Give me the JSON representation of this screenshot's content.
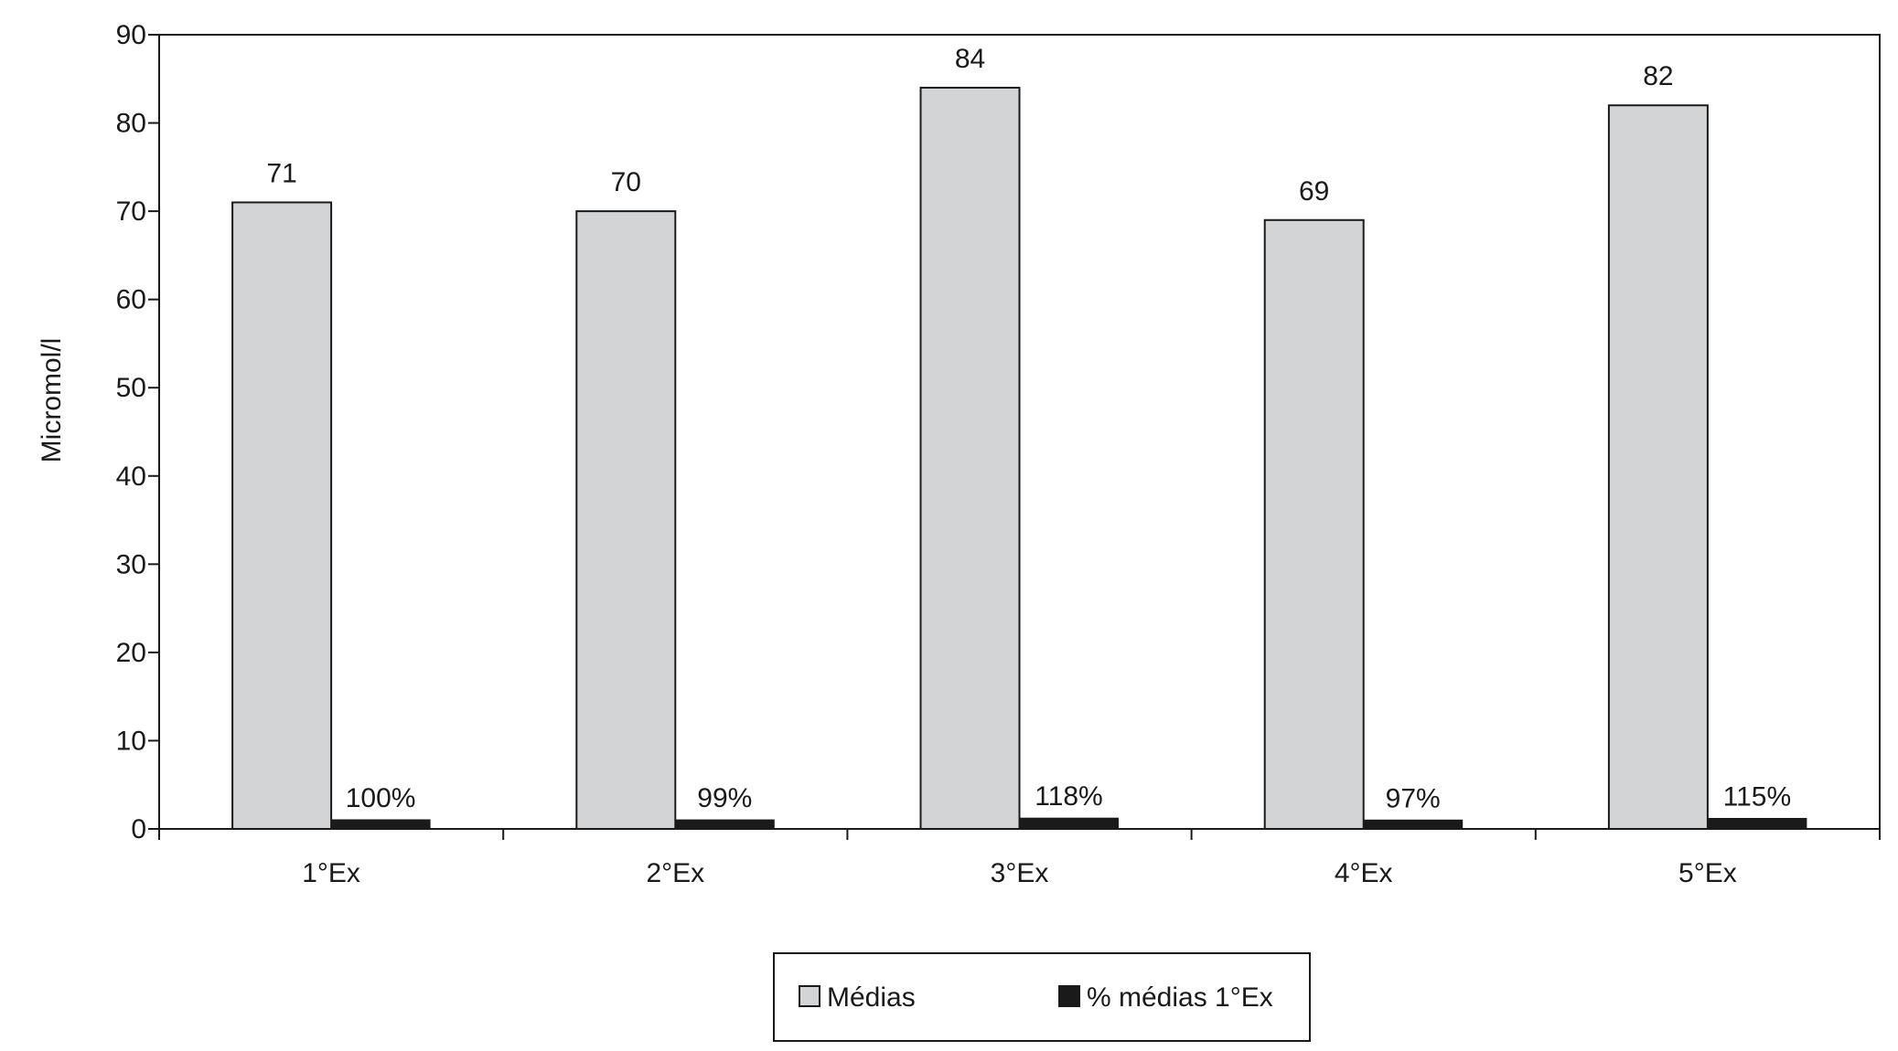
{
  "chart_data": {
    "type": "bar",
    "title": "",
    "xlabel": "",
    "ylabel": "Micromol/l",
    "ylim": [
      0,
      90
    ],
    "yticks": [
      "0",
      "10",
      "20",
      "30",
      "40",
      "50",
      "60",
      "70",
      "80",
      "90"
    ],
    "categories": [
      "1°Ex",
      "2°Ex",
      "3°Ex",
      "4°Ex",
      "5°Ex"
    ],
    "series": [
      {
        "name": "Médias",
        "values": [
          71,
          70,
          84,
          69,
          82
        ],
        "labels": [
          "71",
          "70",
          "84",
          "69",
          "82"
        ],
        "color": "#d3d4d6"
      },
      {
        "name": "% médias 1°Ex",
        "values": [
          1.0,
          0.99,
          1.18,
          0.97,
          1.15
        ],
        "labels": [
          "100%",
          "99%",
          "118%",
          "97%",
          "115%"
        ],
        "color": "#1a1a1a"
      }
    ],
    "grid": false,
    "legend_position": "bottom-center"
  }
}
